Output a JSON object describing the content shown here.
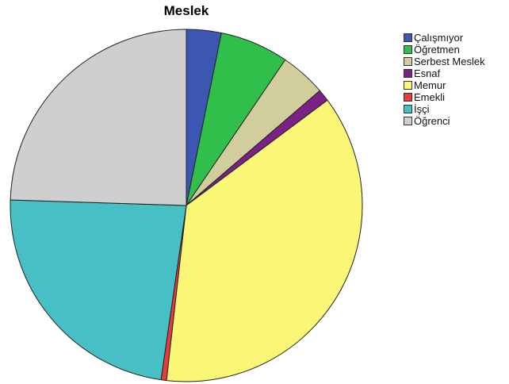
{
  "chart_data": {
    "type": "pie",
    "title": "Meslek",
    "legend_position": "right",
    "slices": [
      {
        "label": "Çalışmıyor",
        "value": 3.2,
        "color": "#3b57b2"
      },
      {
        "label": "Öğretmen",
        "value": 6.3,
        "color": "#2fbf4a"
      },
      {
        "label": "Serbest Meslek",
        "value": 4.2,
        "color": "#d2cd9d"
      },
      {
        "label": "Esnaf",
        "value": 1.1,
        "color": "#7b2187"
      },
      {
        "label": "Memur",
        "value": 37.0,
        "color": "#fbf776"
      },
      {
        "label": "Emekli",
        "value": 0.5,
        "color": "#e83a3a"
      },
      {
        "label": "İşçi",
        "value": 23.2,
        "color": "#46c0c5"
      },
      {
        "label": "Öğrenci",
        "value": 24.5,
        "color": "#cfcfcf"
      }
    ]
  }
}
